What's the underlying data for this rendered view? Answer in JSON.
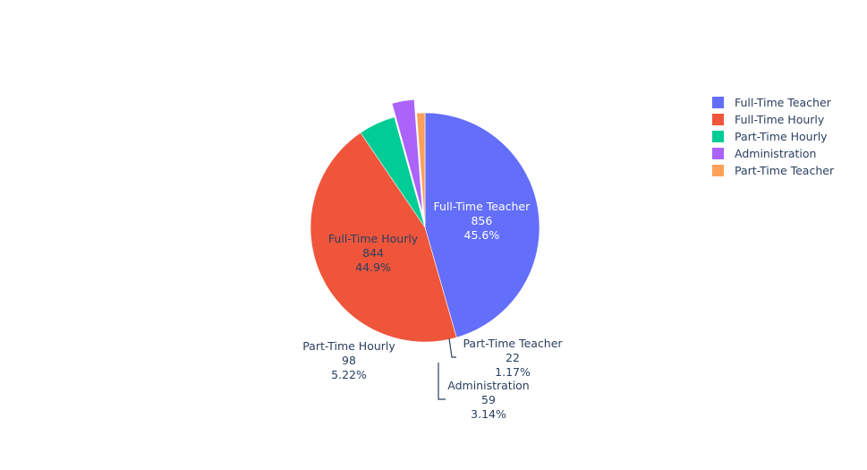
{
  "chart_data": {
    "type": "pie",
    "title": "",
    "sort": "descending",
    "direction": "clockwise",
    "legend_position": "top-right",
    "text_info": [
      "label",
      "value",
      "percent"
    ],
    "slices": [
      {
        "label": "Full-Time Teacher",
        "value": 856,
        "percent": "45.6%",
        "color": "#636efa",
        "pull": 0,
        "label_position": "inside",
        "label_color": "#ffffff"
      },
      {
        "label": "Full-Time Hourly",
        "value": 844,
        "percent": "44.9%",
        "color": "#ef553b",
        "pull": 0,
        "label_position": "inside",
        "label_color": "#2a3f5f"
      },
      {
        "label": "Part-Time Hourly",
        "value": 98,
        "percent": "5.22%",
        "color": "#00cc96",
        "pull": 0,
        "label_position": "outside",
        "label_color": "#2a3f5f"
      },
      {
        "label": "Administration",
        "value": 59,
        "percent": "3.14%",
        "color": "#ab63fa",
        "pull": 0.12,
        "label_position": "outside",
        "label_color": "#2a3f5f"
      },
      {
        "label": "Part-Time Teacher",
        "value": 22,
        "percent": "1.17%",
        "color": "#ffa15a",
        "pull": 0,
        "label_position": "outside",
        "label_color": "#2a3f5f"
      }
    ]
  }
}
